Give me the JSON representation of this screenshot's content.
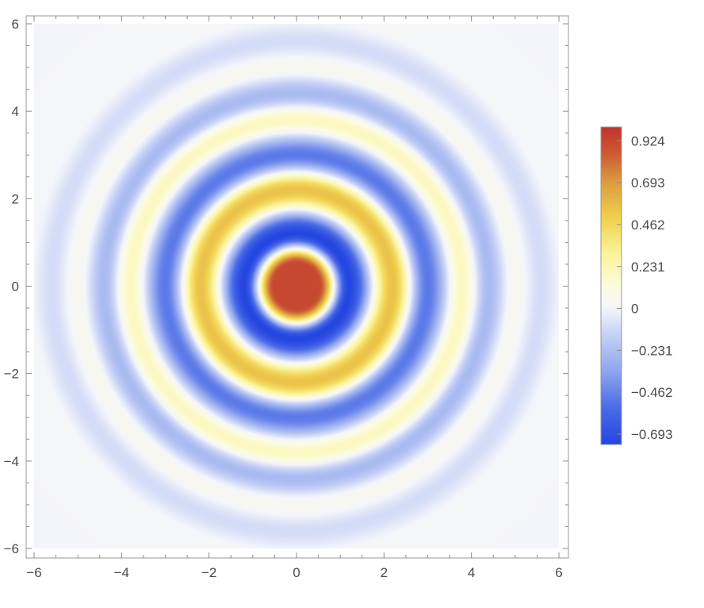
{
  "chart_data": {
    "type": "heatmap",
    "title": "",
    "xlabel": "",
    "ylabel": "",
    "xlim": [
      -6,
      6
    ],
    "ylim": [
      -6,
      6
    ],
    "x_ticks": [
      {
        "value": -6,
        "label": "−6"
      },
      {
        "value": -4,
        "label": "−4"
      },
      {
        "value": -2,
        "label": "−2"
      },
      {
        "value": 0,
        "label": "0"
      },
      {
        "value": 2,
        "label": "2"
      },
      {
        "value": 4,
        "label": "4"
      },
      {
        "value": 6,
        "label": "6"
      }
    ],
    "y_ticks": [
      {
        "value": -6,
        "label": "−6"
      },
      {
        "value": -4,
        "label": "−4"
      },
      {
        "value": -2,
        "label": "−2"
      },
      {
        "value": 0,
        "label": "0"
      },
      {
        "value": 2,
        "label": "2"
      },
      {
        "value": 4,
        "label": "4"
      },
      {
        "value": 6,
        "label": "6"
      }
    ],
    "color_range": [
      -0.75,
      1.0
    ],
    "colorbar_ticks": [
      {
        "value": 0.924,
        "label": "0.924"
      },
      {
        "value": 0.693,
        "label": "0.693"
      },
      {
        "value": 0.462,
        "label": "0.462"
      },
      {
        "value": 0.231,
        "label": "0.231"
      },
      {
        "value": 0,
        "label": "0"
      },
      {
        "value": -0.231,
        "label": "−0.231"
      },
      {
        "value": -0.462,
        "label": "−0.462"
      },
      {
        "value": -0.693,
        "label": "−0.693"
      }
    ],
    "colormap": [
      {
        "v": -0.75,
        "color": "#2446e0"
      },
      {
        "v": -0.55,
        "color": "#4a6ae6"
      },
      {
        "v": -0.35,
        "color": "#8ea4ee"
      },
      {
        "v": -0.12,
        "color": "#cdd7f6"
      },
      {
        "v": 0.0,
        "color": "#f4f5fb"
      },
      {
        "v": 0.12,
        "color": "#fcfbe0"
      },
      {
        "v": 0.3,
        "color": "#fbf49a"
      },
      {
        "v": 0.5,
        "color": "#f0cf4e"
      },
      {
        "v": 0.7,
        "color": "#dc9a40"
      },
      {
        "v": 0.85,
        "color": "#cb5c34"
      },
      {
        "v": 1.0,
        "color": "#c0332d"
      }
    ],
    "legend_position": "right",
    "grid": false,
    "surface": {
      "pattern": "radial rings",
      "center": [
        0,
        0
      ],
      "center_value": 0.924,
      "ring_extrema": [
        {
          "r": 1.2,
          "value": -0.75
        },
        {
          "r": 2.2,
          "value": 0.55
        },
        {
          "r": 3.0,
          "value": -0.5
        },
        {
          "r": 3.8,
          "value": 0.2
        },
        {
          "r": 4.4,
          "value": -0.25
        },
        {
          "r": 5.0,
          "value": 0.05
        },
        {
          "r": 5.6,
          "value": -0.1
        }
      ]
    }
  }
}
